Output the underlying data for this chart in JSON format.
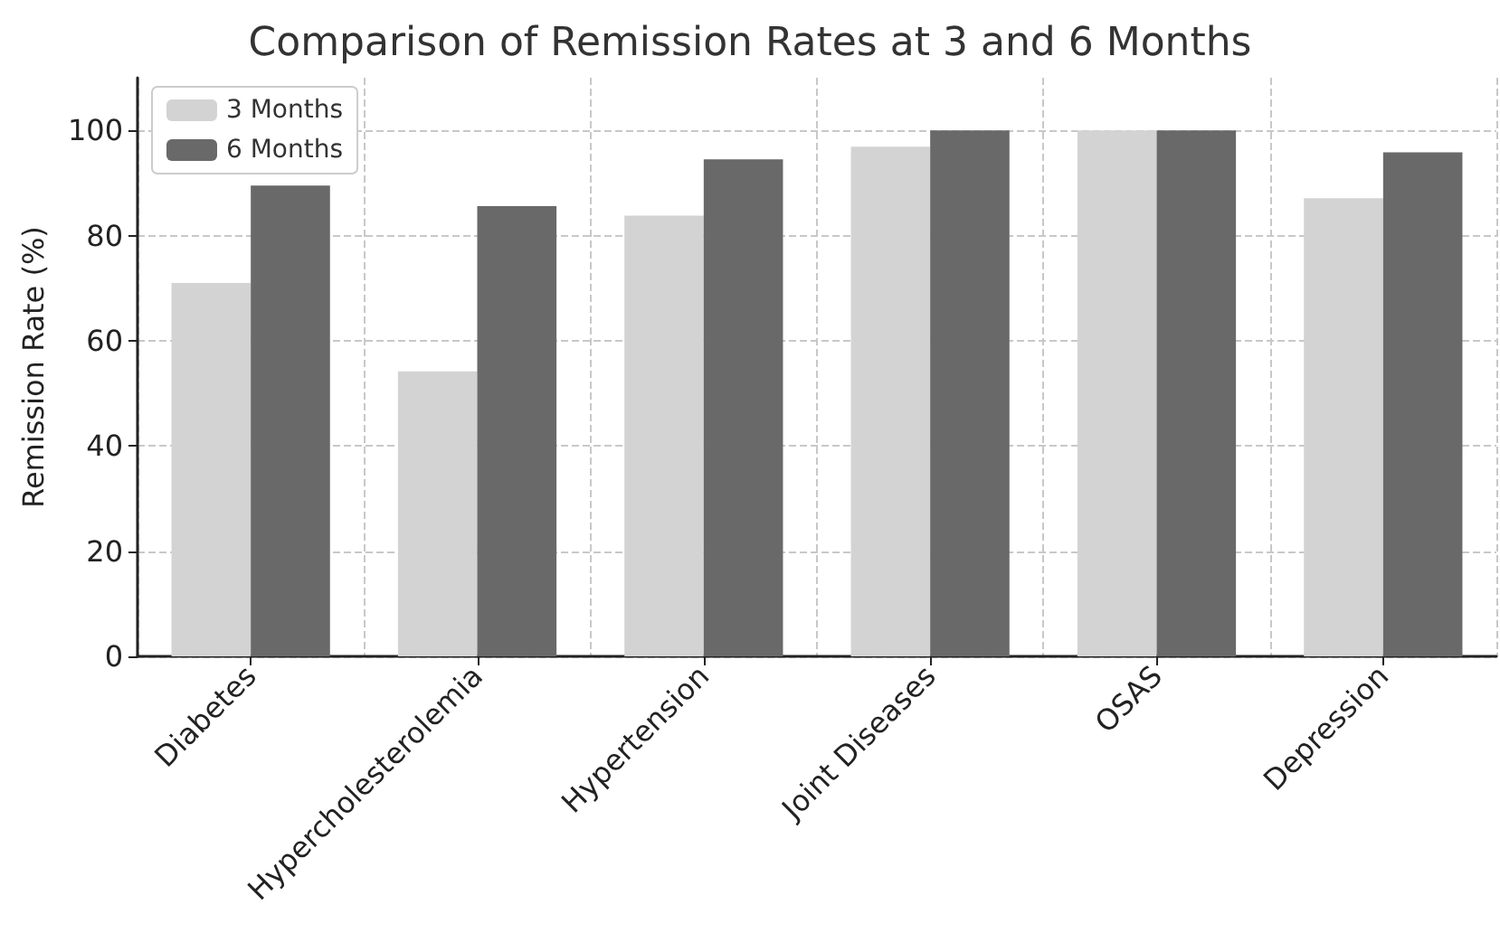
{
  "chart_data": {
    "type": "bar",
    "title": "Comparison of Remission Rates at 3 and 6 Months",
    "ylabel": "Remission Rate (%)",
    "categories": [
      "Diabetes",
      "Hypercholesterolemia",
      "Hypertension",
      "Joint Diseases",
      "OSAS",
      "Depression"
    ],
    "series": [
      {
        "name": "3 Months",
        "color": "#d3d3d3",
        "values": [
          71.0,
          54.2,
          83.8,
          96.9,
          100,
          87.1
        ]
      },
      {
        "name": "6 Months",
        "color": "#696969",
        "values": [
          89.5,
          85.6,
          94.5,
          100,
          100,
          95.8
        ]
      }
    ],
    "ylim": [
      0,
      110
    ],
    "yticks": [
      0,
      20,
      40,
      60,
      80,
      100
    ],
    "grid": true,
    "legend": "top left"
  }
}
